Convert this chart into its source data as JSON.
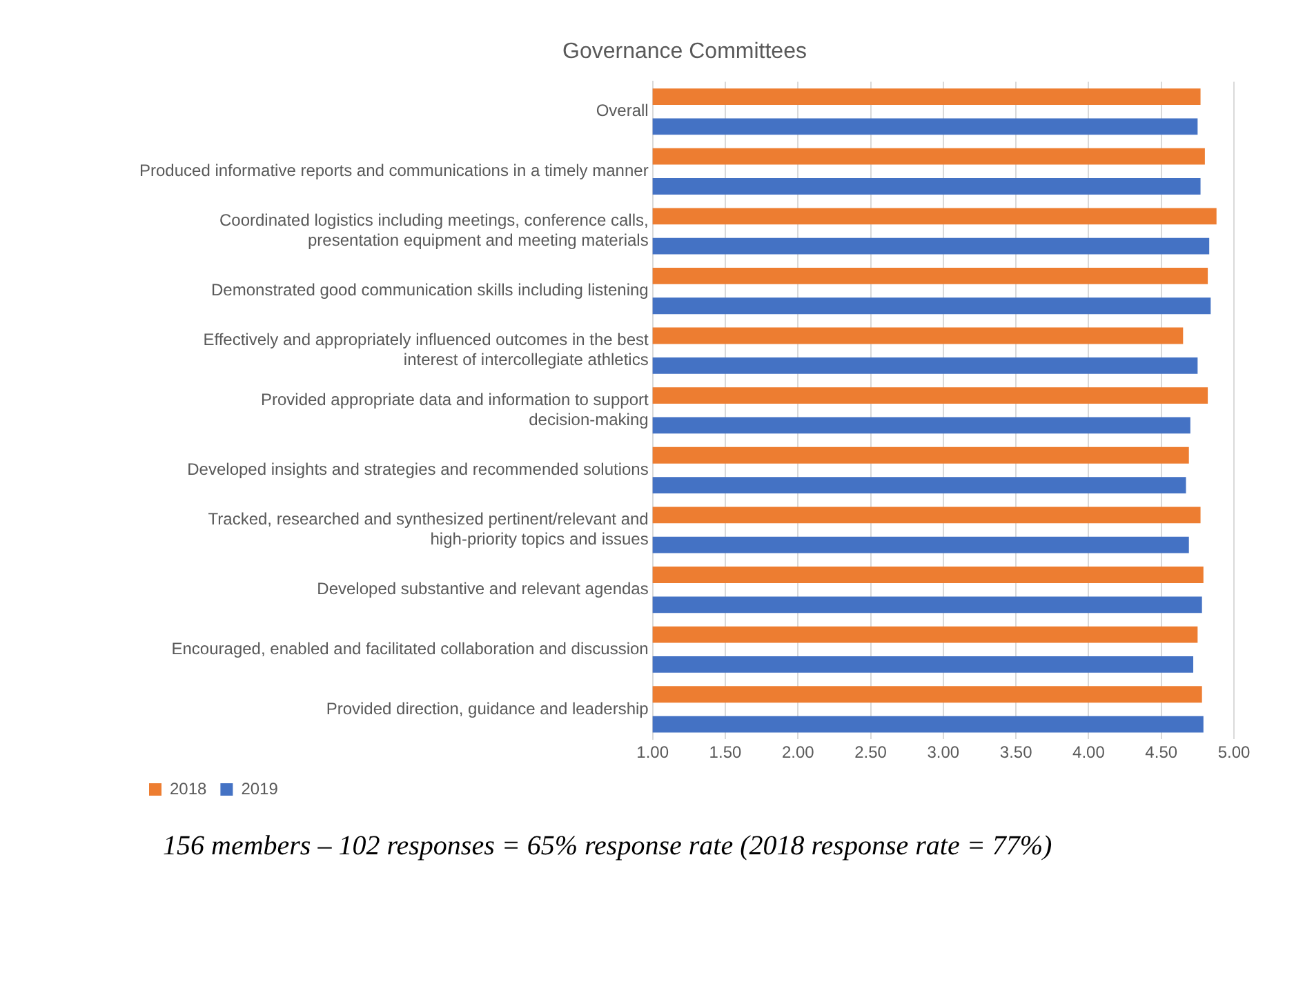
{
  "chart_data": {
    "type": "bar",
    "orientation": "horizontal",
    "title": "Governance Committees",
    "categories": [
      "Overall",
      "Produced informative reports and communications in a timely manner",
      "Coordinated logistics including meetings, conference calls, presentation equipment and meeting materials",
      "Demonstrated good communication skills including listening",
      "Effectively and appropriately influenced outcomes in the best interest of intercollegiate athletics",
      "Provided appropriate data and information to support decision-making",
      "Developed insights and strategies and recommended solutions",
      "Tracked, researched and synthesized pertinent/relevant and high-priority topics and issues",
      "Developed substantive and relevant agendas",
      "Encouraged, enabled and facilitated collaboration and discussion",
      "Provided direction, guidance and leadership"
    ],
    "series": [
      {
        "name": "2018",
        "color": "#ed7d31",
        "values": [
          4.77,
          4.8,
          4.88,
          4.82,
          4.65,
          4.82,
          4.69,
          4.77,
          4.79,
          4.75,
          4.78
        ]
      },
      {
        "name": "2019",
        "color": "#4472c4",
        "values": [
          4.75,
          4.77,
          4.83,
          4.84,
          4.75,
          4.7,
          4.67,
          4.69,
          4.78,
          4.72,
          4.79
        ]
      }
    ],
    "xlim": [
      1,
      5
    ],
    "xticks": [
      {
        "value": 1,
        "label": "1.00"
      },
      {
        "value": 1.5,
        "label": "1.50"
      },
      {
        "value": 2,
        "label": "2.00"
      },
      {
        "value": 2.5,
        "label": "2.50"
      },
      {
        "value": 3,
        "label": "3.00"
      },
      {
        "value": 3.5,
        "label": "3.50"
      },
      {
        "value": 4,
        "label": "4.00"
      },
      {
        "value": 4.5,
        "label": "4.50"
      },
      {
        "value": 5,
        "label": "5.00"
      }
    ],
    "grid": "x",
    "legend": "bottom",
    "annotations": [
      "156 members – 102 responses = 65% response rate (2018 response rate = 77%)"
    ]
  }
}
